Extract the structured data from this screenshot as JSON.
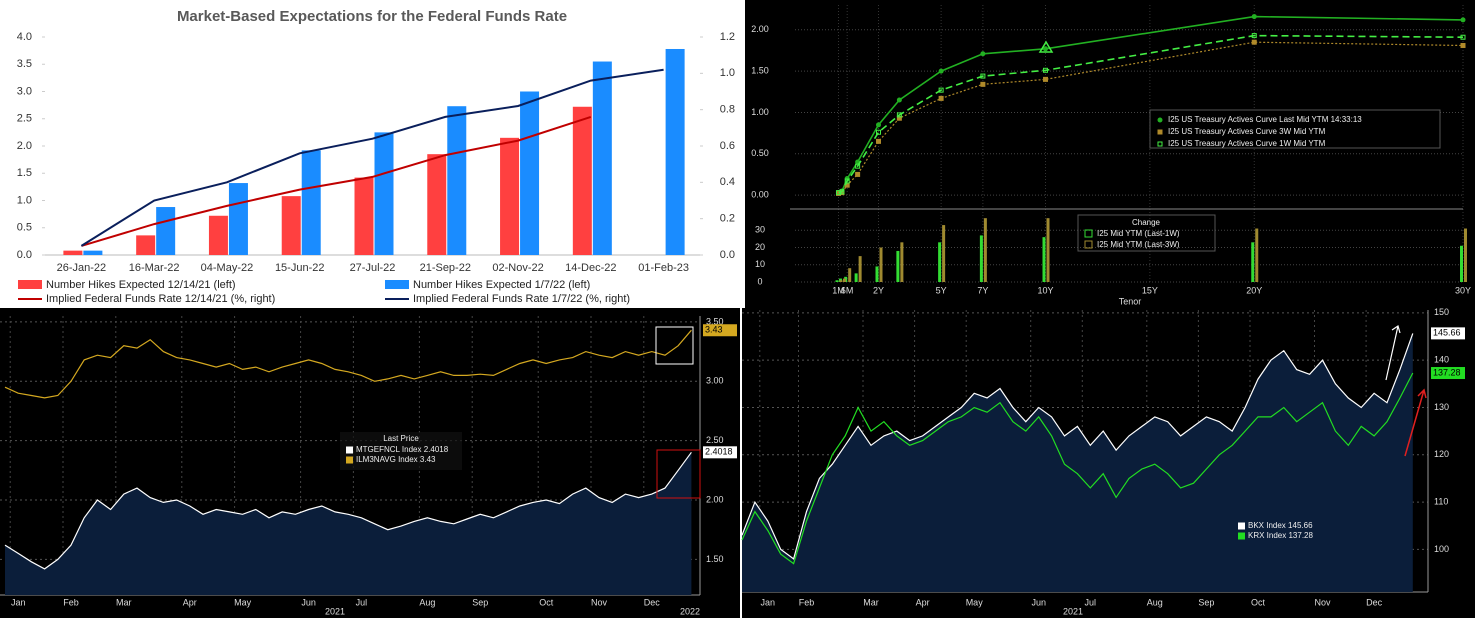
{
  "chart_data": [
    {
      "type": "combo",
      "title": "Market-Based Expectations for the Federal Funds Rate",
      "categories": [
        "26-Jan-22",
        "16-Mar-22",
        "04-May-22",
        "15-Jun-22",
        "27-Jul-22",
        "21-Sep-22",
        "02-Nov-22",
        "14-Dec-22",
        "01-Feb-23"
      ],
      "series": [
        {
          "name": "Number Hikes Expected 12/14/21 (left)",
          "type": "bar",
          "color": "#ff4040",
          "values": [
            0.08,
            0.36,
            0.72,
            1.08,
            1.42,
            1.85,
            2.15,
            2.72,
            null
          ]
        },
        {
          "name": "Number Hikes Expected 1/7/22 (left)",
          "type": "bar",
          "color": "#1a8cff",
          "values": [
            0.08,
            0.88,
            1.32,
            1.92,
            2.25,
            2.73,
            3.0,
            3.55,
            3.78
          ]
        },
        {
          "name": "Implied Federal Funds Rate 12/14/21 (%, right)",
          "type": "line",
          "axis": "y2",
          "color": "#c00000",
          "values": [
            0.05,
            0.17,
            0.27,
            0.36,
            0.43,
            0.55,
            0.63,
            0.76,
            null
          ]
        },
        {
          "name": "Implied Federal Funds Rate 1/7/22 (%, right)",
          "type": "line",
          "axis": "y2",
          "color": "#0a1f5c",
          "values": [
            0.05,
            0.3,
            0.4,
            0.56,
            0.64,
            0.76,
            0.82,
            0.96,
            1.02
          ]
        }
      ],
      "ylim": [
        0,
        4
      ],
      "yticks": [
        {
          "value": 0,
          "label": "0.0"
        },
        0.5,
        {
          "value": 1,
          "label": "1.0"
        },
        1.5,
        {
          "value": 2,
          "label": "2.0"
        },
        2.5,
        {
          "value": 3,
          "label": "3.0"
        },
        3.5,
        {
          "value": 4,
          "label": "4.0"
        }
      ],
      "y2lim": [
        0,
        1.2
      ],
      "y2ticks": [
        {
          "value": 0,
          "label": "0.0"
        },
        0.2,
        0.4,
        0.6,
        0.8,
        {
          "value": 1,
          "label": "1.0"
        },
        1.2
      ]
    },
    {
      "type": "line",
      "x": [
        0.083,
        0.25,
        0.5,
        1,
        2,
        3,
        5,
        7,
        10,
        20,
        30
      ],
      "series": [
        {
          "name": "I25 US Treasury Actives Curve Last Mid YTM 14:33:13",
          "color": "#22b022",
          "marker": "circle",
          "dash": "none",
          "values": [
            0.03,
            0.05,
            0.2,
            0.4,
            0.85,
            1.15,
            1.5,
            1.71,
            1.77,
            2.16,
            2.12
          ]
        },
        {
          "name": "I25 US Treasury Actives Curve 3W Mid YTM",
          "color": "#b08a2a",
          "marker": "square",
          "dash": "2,2",
          "values": [
            0.02,
            0.03,
            0.12,
            0.25,
            0.65,
            0.93,
            1.17,
            1.34,
            1.4,
            1.85,
            1.81
          ]
        },
        {
          "name": "I25 US Treasury Actives Curve 1W Mid YTM",
          "color": "#44ee44",
          "marker": "open-square",
          "dash": "7,4",
          "values": [
            0.03,
            0.04,
            0.17,
            0.35,
            0.76,
            0.97,
            1.27,
            1.44,
            1.51,
            1.93,
            1.91
          ]
        }
      ],
      "xlim": [
        -2,
        30
      ],
      "xticks": [
        {
          "value": 0.083,
          "label": "1M"
        },
        {
          "value": 0.5,
          "label": "6M"
        },
        {
          "value": 2,
          "label": "2Y"
        },
        {
          "value": 5,
          "label": "5Y"
        },
        {
          "value": 7,
          "label": "7Y"
        },
        {
          "value": 10,
          "label": "10Y"
        },
        {
          "value": 15,
          "label": "15Y"
        },
        {
          "value": 20,
          "label": "20Y"
        },
        {
          "value": 30,
          "label": "30Y"
        }
      ],
      "ylim": [
        -0.12,
        2.3
      ],
      "yticks": [
        {
          "value": 0,
          "label": "0.00"
        },
        {
          "value": 0.5,
          "label": "0.50"
        },
        {
          "value": 1,
          "label": "1.00"
        },
        {
          "value": 1.5,
          "label": "1.50"
        },
        {
          "value": 2,
          "label": "2.00"
        }
      ],
      "grid": true
    },
    {
      "type": "bar",
      "legend_title": "Change",
      "xlabel": "Tenor",
      "series": [
        {
          "name": "I25 Mid YTM (Last-1W)",
          "color": "#33dd33",
          "values": [
            1,
            2,
            3,
            5,
            9,
            18,
            23,
            27,
            26,
            23,
            21
          ]
        },
        {
          "name": "I25 Mid YTM (Last-3W)",
          "color": "#a08a30",
          "values": [
            1,
            2,
            8,
            15,
            20,
            23,
            33,
            37,
            37,
            31,
            31
          ]
        }
      ],
      "ylim": [
        0,
        40
      ],
      "yticks": [
        0,
        10,
        20,
        30
      ],
      "grid": true
    },
    {
      "type": "area",
      "legend_title": "Last Price",
      "categories": [
        null,
        "Jan",
        null,
        null,
        null,
        "Feb",
        null,
        null,
        null,
        "Mar",
        null,
        null,
        null,
        null,
        "Apr",
        null,
        null,
        null,
        "May",
        null,
        null,
        null,
        null,
        "Jun",
        null,
        null,
        null,
        "Jul",
        null,
        null,
        null,
        null,
        "Aug",
        null,
        null,
        null,
        "Sep",
        null,
        null,
        null,
        null,
        "Oct",
        null,
        null,
        null,
        "Nov",
        null,
        null,
        null,
        "Dec",
        null,
        null,
        null
      ],
      "year_labels": [
        "2021",
        "2022"
      ],
      "series": [
        {
          "name": "MTGEFNCL Index",
          "style": "area",
          "color": "#ffffff",
          "values": [
            1.62,
            1.55,
            1.48,
            1.42,
            1.5,
            1.62,
            1.85,
            2.0,
            1.92,
            2.05,
            2.1,
            2.02,
            1.98,
            2.0,
            1.95,
            1.88,
            1.92,
            1.9,
            1.88,
            1.92,
            1.85,
            1.9,
            1.88,
            1.92,
            1.95,
            1.9,
            1.88,
            1.85,
            1.8,
            1.75,
            1.78,
            1.82,
            1.85,
            1.82,
            1.8,
            1.84,
            1.88,
            1.85,
            1.9,
            1.95,
            1.98,
            2.0,
            1.97,
            2.05,
            2.1,
            2.02,
            1.98,
            2.05,
            2.02,
            2.05,
            2.1,
            2.25,
            2.4018
          ]
        },
        {
          "name": "ILM3NAVG Index",
          "style": "line",
          "color": "#d4a820",
          "values": [
            2.95,
            2.9,
            2.88,
            2.86,
            2.88,
            3.0,
            3.18,
            3.22,
            3.2,
            3.3,
            3.28,
            3.35,
            3.25,
            3.2,
            3.18,
            3.15,
            3.12,
            3.15,
            3.1,
            3.12,
            3.08,
            3.12,
            3.15,
            3.18,
            3.15,
            3.1,
            3.08,
            3.05,
            3.0,
            3.02,
            3.05,
            3.02,
            3.05,
            3.08,
            3.05,
            3.05,
            3.06,
            3.05,
            3.1,
            3.15,
            3.18,
            3.15,
            3.18,
            3.2,
            3.25,
            3.22,
            3.2,
            3.25,
            3.22,
            3.25,
            3.22,
            3.3,
            3.43
          ]
        }
      ],
      "ylim": [
        1.2,
        3.55
      ],
      "yticks": [
        {
          "value": 1.5,
          "label": "1.50"
        },
        {
          "value": 2,
          "label": "2.00"
        },
        {
          "value": 2.5,
          "label": "2.50"
        },
        {
          "value": 3,
          "label": "3.00"
        },
        {
          "value": 3.5,
          "label": "3.50"
        }
      ],
      "grid": true
    },
    {
      "type": "area",
      "legend_title": "Last Price",
      "categories": [
        null,
        null,
        "Jan",
        null,
        null,
        "Feb",
        null,
        null,
        null,
        null,
        "Mar",
        null,
        null,
        null,
        "Apr",
        null,
        null,
        null,
        "May",
        null,
        null,
        null,
        null,
        "Jun",
        null,
        null,
        null,
        "Jul",
        null,
        null,
        null,
        null,
        "Aug",
        null,
        null,
        null,
        "Sep",
        null,
        null,
        null,
        "Oct",
        null,
        null,
        null,
        null,
        "Nov",
        null,
        null,
        null,
        "Dec",
        null,
        null,
        null
      ],
      "year_labels": [
        "2021"
      ],
      "series": [
        {
          "name": "BKX Index",
          "style": "area",
          "color": "#ffffff",
          "values": [
            103,
            110,
            106,
            100,
            98,
            108,
            115,
            118,
            122,
            126,
            122,
            124,
            125,
            123,
            124,
            126,
            128,
            130,
            133,
            132,
            134,
            130,
            127,
            130,
            128,
            124,
            126,
            122,
            125,
            121,
            124,
            126,
            128,
            127,
            124,
            126,
            128,
            127,
            125,
            130,
            136,
            140,
            142,
            138,
            137,
            140,
            135,
            132,
            130,
            133,
            131,
            138,
            145.66
          ]
        },
        {
          "name": "KRX Index",
          "style": "line",
          "color": "#22dd22",
          "values": [
            102,
            108,
            104,
            99,
            97,
            106,
            113,
            120,
            124,
            130,
            125,
            127,
            124,
            122,
            123,
            125,
            127,
            128,
            130,
            129,
            131,
            127,
            125,
            128,
            124,
            118,
            116,
            113,
            116,
            111,
            115,
            117,
            118,
            116,
            113,
            114,
            117,
            120,
            122,
            125,
            128,
            128,
            130,
            127,
            129,
            131,
            125,
            122,
            126,
            124,
            127,
            132,
            137.28
          ]
        }
      ],
      "ylim": [
        91,
        150.6
      ],
      "yticks": [
        100,
        110,
        120,
        130,
        140,
        150
      ],
      "grid": true
    }
  ]
}
